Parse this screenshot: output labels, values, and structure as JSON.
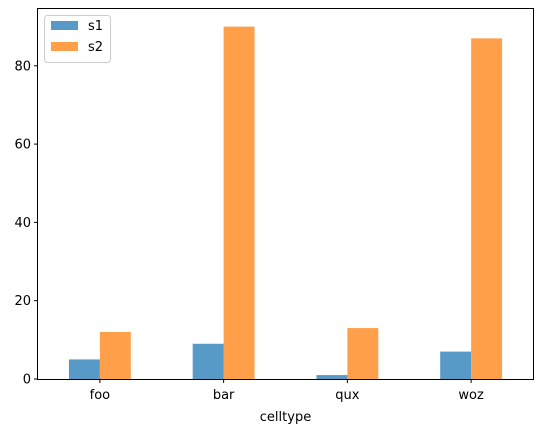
{
  "chart_data": {
    "type": "bar",
    "title": "",
    "xlabel": "celltype",
    "ylabel": "",
    "categories": [
      "foo",
      "bar",
      "qux",
      "woz"
    ],
    "series": [
      {
        "name": "s1",
        "values": [
          5,
          9,
          1,
          7
        ],
        "color": "#1f77b4"
      },
      {
        "name": "s2",
        "values": [
          12,
          90,
          13,
          87
        ],
        "color": "#ff7f0e"
      }
    ],
    "ylim": [
      0,
      94.5
    ],
    "yticks": [
      0,
      20,
      40,
      60,
      80
    ],
    "bar_opacity": 0.75,
    "grid": false,
    "legend_position": "top-left"
  }
}
